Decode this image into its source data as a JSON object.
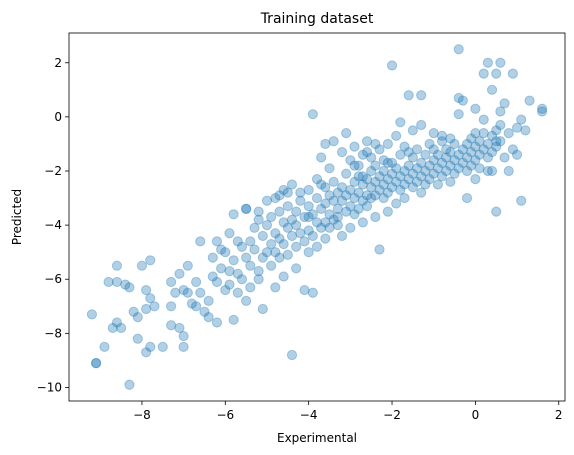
{
  "chart_data": {
    "type": "scatter",
    "title": "Training dataset",
    "xlabel": "Experimental",
    "ylabel": "Predicted",
    "xlim": [
      -9.75,
      2.15
    ],
    "ylim": [
      -10.5,
      3.1
    ],
    "xticks": [
      -8,
      -6,
      -4,
      -2,
      0,
      2
    ],
    "yticks": [
      -10,
      -8,
      -6,
      -4,
      -2,
      0,
      2
    ],
    "xtick_labels": [
      "−8",
      "−6",
      "−4",
      "−2",
      "0",
      "2"
    ],
    "ytick_labels": [
      "−10",
      "−8",
      "−6",
      "−4",
      "−2",
      "0",
      "2"
    ],
    "grid": false,
    "marker_color": "#1f77b4",
    "marker_alpha": 0.35,
    "series": [
      {
        "points": [
          [
            -9.2,
            -7.3
          ],
          [
            -9.1,
            -9.1
          ],
          [
            -9.1,
            -9.1
          ],
          [
            -8.9,
            -8.5
          ],
          [
            -8.8,
            -6.1
          ],
          [
            -8.7,
            -7.8
          ],
          [
            -8.6,
            -6.1
          ],
          [
            -8.6,
            -7.6
          ],
          [
            -8.6,
            -5.5
          ],
          [
            -8.5,
            -7.8
          ],
          [
            -8.4,
            -6.2
          ],
          [
            -8.3,
            -6.3
          ],
          [
            -8.3,
            -9.9
          ],
          [
            -8.2,
            -7.2
          ],
          [
            -8.1,
            -7.4
          ],
          [
            -8.1,
            -8.2
          ],
          [
            -8.0,
            -5.5
          ],
          [
            -7.9,
            -6.4
          ],
          [
            -7.9,
            -7.1
          ],
          [
            -7.9,
            -8.7
          ],
          [
            -7.8,
            -6.7
          ],
          [
            -7.8,
            -8.5
          ],
          [
            -7.8,
            -5.3
          ],
          [
            -7.7,
            -7.0
          ],
          [
            -7.5,
            -8.5
          ],
          [
            -7.3,
            -6.1
          ],
          [
            -7.3,
            -7.0
          ],
          [
            -7.3,
            -7.7
          ],
          [
            -7.2,
            -6.5
          ],
          [
            -7.1,
            -5.8
          ],
          [
            -7.1,
            -7.8
          ],
          [
            -7.0,
            -8.1
          ],
          [
            -7.0,
            -6.4
          ],
          [
            -7.0,
            -8.5
          ],
          [
            -6.9,
            -6.5
          ],
          [
            -6.9,
            -5.5
          ],
          [
            -6.8,
            -6.9
          ],
          [
            -6.7,
            -6.1
          ],
          [
            -6.7,
            -7.0
          ],
          [
            -6.6,
            -4.6
          ],
          [
            -6.6,
            -6.5
          ],
          [
            -6.5,
            -7.2
          ],
          [
            -6.4,
            -7.4
          ],
          [
            -6.4,
            -6.8
          ],
          [
            -6.3,
            -5.9
          ],
          [
            -6.3,
            -5.2
          ],
          [
            -6.2,
            -6.1
          ],
          [
            -6.2,
            -7.6
          ],
          [
            -6.1,
            -5.6
          ],
          [
            -6.1,
            -4.9
          ],
          [
            -6.0,
            -6.4
          ],
          [
            -6.0,
            -5.0
          ],
          [
            -5.9,
            -5.7
          ],
          [
            -5.9,
            -4.3
          ],
          [
            -5.9,
            -6.2
          ],
          [
            -5.8,
            -5.3
          ],
          [
            -5.8,
            -7.5
          ],
          [
            -5.8,
            -3.6
          ],
          [
            -5.7,
            -6.5
          ],
          [
            -5.7,
            -4.6
          ],
          [
            -5.7,
            -5.8
          ],
          [
            -5.6,
            -4.8
          ],
          [
            -5.6,
            -6.0
          ],
          [
            -5.5,
            -5.2
          ],
          [
            -5.5,
            -3.4
          ],
          [
            -5.5,
            -6.8
          ],
          [
            -5.4,
            -4.6
          ],
          [
            -5.4,
            -5.5
          ],
          [
            -5.4,
            -6.3
          ],
          [
            -5.3,
            -4.9
          ],
          [
            -5.3,
            -4.1
          ],
          [
            -5.2,
            -5.7
          ],
          [
            -5.2,
            -3.5
          ],
          [
            -5.2,
            -6.0
          ],
          [
            -5.1,
            -4.4
          ],
          [
            -5.1,
            -5.2
          ],
          [
            -5.1,
            -7.1
          ],
          [
            -5.0,
            -4.0
          ],
          [
            -5.0,
            -5.0
          ],
          [
            -5.0,
            -3.1
          ],
          [
            -4.9,
            -4.7
          ],
          [
            -4.9,
            -5.5
          ],
          [
            -4.9,
            -3.7
          ],
          [
            -4.8,
            -4.3
          ],
          [
            -4.8,
            -5.0
          ],
          [
            -4.8,
            -3.0
          ],
          [
            -4.8,
            -6.3
          ],
          [
            -4.7,
            -4.5
          ],
          [
            -4.7,
            -3.5
          ],
          [
            -4.7,
            -5.2
          ],
          [
            -4.6,
            -3.9
          ],
          [
            -4.6,
            -4.7
          ],
          [
            -4.6,
            -2.7
          ],
          [
            -4.6,
            -5.9
          ],
          [
            -4.5,
            -4.1
          ],
          [
            -4.5,
            -3.3
          ],
          [
            -4.5,
            -5.1
          ],
          [
            -4.4,
            -4.4
          ],
          [
            -4.4,
            -3.8
          ],
          [
            -4.4,
            -2.5
          ],
          [
            -4.4,
            -8.8
          ],
          [
            -4.3,
            -4.0
          ],
          [
            -4.3,
            -3.5
          ],
          [
            -4.3,
            -5.6
          ],
          [
            -4.3,
            -4.8
          ],
          [
            -4.2,
            -3.1
          ],
          [
            -4.2,
            -4.3
          ],
          [
            -4.2,
            -2.8
          ],
          [
            -4.1,
            -3.7
          ],
          [
            -4.1,
            -4.6
          ],
          [
            -4.1,
            -6.4
          ],
          [
            -4.0,
            -3.3
          ],
          [
            -4.0,
            -4.2
          ],
          [
            -4.0,
            -2.7
          ],
          [
            -4.0,
            -5.0
          ],
          [
            -3.9,
            -3.6
          ],
          [
            -3.9,
            -4.4
          ],
          [
            -3.9,
            0.1
          ],
          [
            -3.9,
            -6.5
          ],
          [
            -3.8,
            -3.0
          ],
          [
            -3.8,
            -3.9
          ],
          [
            -3.8,
            -2.3
          ],
          [
            -3.8,
            -4.8
          ],
          [
            -3.7,
            -3.4
          ],
          [
            -3.7,
            -4.1
          ],
          [
            -3.7,
            -1.5
          ],
          [
            -3.6,
            -3.2
          ],
          [
            -3.6,
            -3.9
          ],
          [
            -3.6,
            -2.6
          ],
          [
            -3.6,
            -4.5
          ],
          [
            -3.5,
            -2.9
          ],
          [
            -3.5,
            -3.6
          ],
          [
            -3.5,
            -1.9
          ],
          [
            -3.5,
            -4.1
          ],
          [
            -3.4,
            -3.1
          ],
          [
            -3.4,
            -3.8
          ],
          [
            -3.4,
            -2.4
          ],
          [
            -3.4,
            -0.9
          ],
          [
            -3.3,
            -3.4
          ],
          [
            -3.3,
            -2.8
          ],
          [
            -3.3,
            -4.0
          ],
          [
            -3.2,
            -2.6
          ],
          [
            -3.2,
            -3.1
          ],
          [
            -3.2,
            -1.3
          ],
          [
            -3.2,
            -4.4
          ],
          [
            -3.1,
            -2.9
          ],
          [
            -3.1,
            -3.5
          ],
          [
            -3.1,
            -2.1
          ],
          [
            -3.0,
            -2.7
          ],
          [
            -3.0,
            -3.3
          ],
          [
            -3.0,
            -1.6
          ],
          [
            -3.0,
            -4.1
          ],
          [
            -2.9,
            -3.0
          ],
          [
            -2.9,
            -2.4
          ],
          [
            -2.9,
            -3.6
          ],
          [
            -2.9,
            -1.1
          ],
          [
            -2.8,
            -2.8
          ],
          [
            -2.8,
            -2.2
          ],
          [
            -2.8,
            -3.4
          ],
          [
            -2.8,
            -1.8
          ],
          [
            -2.7,
            -2.5
          ],
          [
            -2.7,
            -3.1
          ],
          [
            -2.7,
            -1.4
          ],
          [
            -2.7,
            -3.9
          ],
          [
            -2.6,
            -2.9
          ],
          [
            -2.6,
            -2.3
          ],
          [
            -2.6,
            -3.3
          ],
          [
            -2.6,
            -0.9
          ],
          [
            -2.5,
            -2.6
          ],
          [
            -2.5,
            -2.0
          ],
          [
            -2.5,
            -3.0
          ],
          [
            -2.5,
            -1.5
          ],
          [
            -2.4,
            -2.4
          ],
          [
            -2.4,
            -2.9
          ],
          [
            -2.4,
            -1.8
          ],
          [
            -2.4,
            -3.7
          ],
          [
            -2.3,
            -2.2
          ],
          [
            -2.3,
            -2.7
          ],
          [
            -2.3,
            -1.2
          ],
          [
            -2.3,
            -4.9
          ],
          [
            -2.2,
            -2.5
          ],
          [
            -2.2,
            -2.0
          ],
          [
            -2.2,
            -3.0
          ],
          [
            -2.2,
            -1.6
          ],
          [
            -2.1,
            -2.3
          ],
          [
            -2.1,
            -2.8
          ],
          [
            -2.1,
            -1.0
          ],
          [
            -2.1,
            -3.5
          ],
          [
            -2.0,
            -2.1
          ],
          [
            -2.0,
            -2.6
          ],
          [
            -2.0,
            -1.7
          ],
          [
            -2.0,
            1.9
          ],
          [
            -1.9,
            -2.4
          ],
          [
            -1.9,
            -1.9
          ],
          [
            -1.9,
            -3.2
          ],
          [
            -1.9,
            -0.7
          ],
          [
            -1.8,
            -2.2
          ],
          [
            -1.8,
            -2.7
          ],
          [
            -1.8,
            -1.4
          ],
          [
            -1.7,
            -2.0
          ],
          [
            -1.7,
            -2.5
          ],
          [
            -1.7,
            -1.1
          ],
          [
            -1.7,
            -3.0
          ],
          [
            -1.6,
            -2.3
          ],
          [
            -1.6,
            -1.8
          ],
          [
            -1.6,
            0.8
          ],
          [
            -1.5,
            -2.1
          ],
          [
            -1.5,
            -2.6
          ],
          [
            -1.5,
            -1.5
          ],
          [
            -1.5,
            -0.5
          ],
          [
            -1.4,
            -1.9
          ],
          [
            -1.4,
            -2.4
          ],
          [
            -1.4,
            -1.2
          ],
          [
            -1.3,
            -2.2
          ],
          [
            -1.3,
            -1.7
          ],
          [
            -1.3,
            -2.8
          ],
          [
            -1.3,
            0.8
          ],
          [
            -1.2,
            -2.0
          ],
          [
            -1.2,
            -1.4
          ],
          [
            -1.2,
            -2.5
          ],
          [
            -1.1,
            -1.8
          ],
          [
            -1.1,
            -2.3
          ],
          [
            -1.1,
            -1.0
          ],
          [
            -1.0,
            -1.6
          ],
          [
            -1.0,
            -2.1
          ],
          [
            -1.0,
            -0.6
          ],
          [
            -0.9,
            -1.9
          ],
          [
            -0.9,
            -1.4
          ],
          [
            -0.9,
            -2.5
          ],
          [
            -0.8,
            -1.7
          ],
          [
            -0.8,
            -2.2
          ],
          [
            -0.8,
            -0.9
          ],
          [
            -0.7,
            -1.5
          ],
          [
            -0.7,
            -2.0
          ],
          [
            -0.7,
            -1.2
          ],
          [
            -0.6,
            -1.8
          ],
          [
            -0.6,
            -1.3
          ],
          [
            -0.6,
            -2.4
          ],
          [
            -0.5,
            -1.6
          ],
          [
            -0.5,
            -1.0
          ],
          [
            -0.5,
            -2.1
          ],
          [
            -0.4,
            -1.4
          ],
          [
            -0.4,
            -1.9
          ],
          [
            -0.4,
            0.7
          ],
          [
            -0.4,
            2.5
          ],
          [
            -0.3,
            -1.2
          ],
          [
            -0.3,
            -1.7
          ],
          [
            -0.3,
            0.6
          ],
          [
            -0.2,
            -1.5
          ],
          [
            -0.2,
            -2.0
          ],
          [
            -0.2,
            -1.0
          ],
          [
            -0.2,
            -3.0
          ],
          [
            -0.1,
            -1.3
          ],
          [
            -0.1,
            -1.8
          ],
          [
            -0.1,
            -0.8
          ],
          [
            0.0,
            -1.1
          ],
          [
            0.0,
            -1.6
          ],
          [
            0.0,
            0.3
          ],
          [
            0.0,
            -2.3
          ],
          [
            0.1,
            -1.4
          ],
          [
            0.1,
            -0.9
          ],
          [
            0.1,
            -1.9
          ],
          [
            0.2,
            -1.2
          ],
          [
            0.2,
            -0.6
          ],
          [
            0.2,
            1.6
          ],
          [
            0.3,
            -1.0
          ],
          [
            0.3,
            -1.5
          ],
          [
            0.3,
            -2.0
          ],
          [
            0.3,
            2.0
          ],
          [
            0.4,
            -0.7
          ],
          [
            0.4,
            -1.3
          ],
          [
            0.4,
            -2.0
          ],
          [
            0.4,
            1.0
          ],
          [
            0.5,
            -0.5
          ],
          [
            0.5,
            -1.1
          ],
          [
            0.5,
            -3.5
          ],
          [
            0.5,
            1.6
          ],
          [
            0.6,
            -0.9
          ],
          [
            0.6,
            -0.3
          ],
          [
            0.6,
            2.0
          ],
          [
            0.7,
            -1.5
          ],
          [
            0.7,
            0.5
          ],
          [
            0.8,
            -0.6
          ],
          [
            0.8,
            -2.0
          ],
          [
            0.9,
            -1.2
          ],
          [
            0.9,
            1.6
          ],
          [
            1.0,
            -0.4
          ],
          [
            1.0,
            -1.4
          ],
          [
            1.1,
            -0.1
          ],
          [
            1.1,
            -3.1
          ],
          [
            1.2,
            -0.5
          ],
          [
            1.3,
            0.6
          ],
          [
            1.6,
            0.2
          ],
          [
            1.6,
            0.3
          ],
          [
            -5.5,
            -3.4
          ],
          [
            -6.2,
            -4.6
          ],
          [
            -4.7,
            -2.9
          ],
          [
            -3.1,
            -0.6
          ],
          [
            -2.6,
            -1.3
          ],
          [
            -1.8,
            -0.2
          ],
          [
            -1.3,
            -0.3
          ],
          [
            -0.8,
            -0.7
          ],
          [
            -0.4,
            0.1
          ],
          [
            0.2,
            -0.1
          ],
          [
            0.6,
            0.2
          ],
          [
            -3.6,
            -1.0
          ],
          [
            -2.4,
            -1.0
          ],
          [
            -2.9,
            -1.8
          ],
          [
            -3.7,
            -2.5
          ],
          [
            -4.5,
            -2.8
          ],
          [
            -5.2,
            -3.8
          ],
          [
            -4.0,
            -3.7
          ],
          [
            -3.3,
            -3.7
          ],
          [
            -2.7,
            -2.2
          ],
          [
            -2.1,
            -1.7
          ],
          [
            -1.6,
            -1.3
          ],
          [
            -1.0,
            -1.2
          ],
          [
            -0.6,
            -0.8
          ],
          [
            0.0,
            -0.6
          ],
          [
            0.5,
            -0.9
          ]
        ]
      }
    ]
  }
}
